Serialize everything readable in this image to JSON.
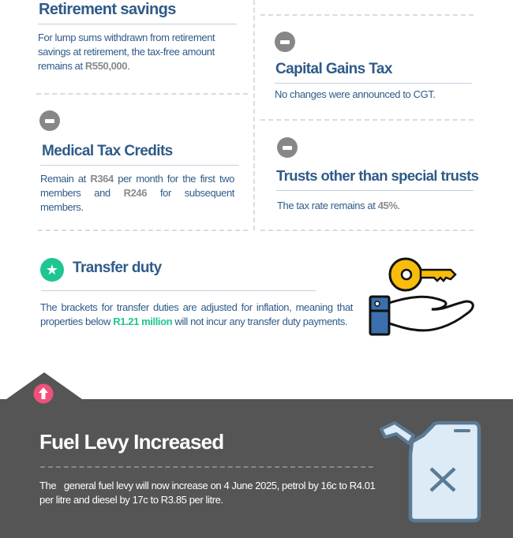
{
  "retirement": {
    "title": "Retirement savings",
    "text_before": "For lump sums withdrawn from retirement savings at retirement, the tax-free amount remains at ",
    "value": "R550,000",
    "text_after": "."
  },
  "cgt": {
    "title": "Capital Gains Tax",
    "text": "No changes were announced to CGT.",
    "icon": "minus-circle-icon"
  },
  "medical": {
    "title": "Medical Tax Credits",
    "t1": "Remain at ",
    "v1": "R364",
    "t2": " per month for the first two members and ",
    "v2": "R246",
    "t3": " for subsequent members.",
    "icon": "minus-circle-icon"
  },
  "trusts": {
    "title": "Trusts other than special trusts",
    "text_before": "The tax rate remains at ",
    "value": "45%",
    "text_after": ".",
    "icon": "minus-circle-icon"
  },
  "transfer": {
    "title": "Transfer duty",
    "t1": "The brackets for transfer duties are adjusted for inflation, meaning that properties below ",
    "value": "R1.21 million",
    "t2": " will not incur any transfer duty payments.",
    "icon": "star-circle-icon",
    "illustration": "hand-with-key-icon"
  },
  "fuel": {
    "title": "Fuel Levy Increased",
    "text": "The   general fuel levy will now increase on 4 June 2025, petrol by 16c to R4.01 per litre and diesel by 17c to R3.85 per litre.",
    "icon": "arrow-up-circle-icon",
    "illustration": "jerry-can-icon"
  },
  "colors": {
    "text": "#2f5b88",
    "highlight_gray": "#8a8a8a",
    "accent_green": "#1fc593",
    "dark_bg": "#555555",
    "up_pink": "#f0507a",
    "key_yellow": "#f8bd0a"
  }
}
